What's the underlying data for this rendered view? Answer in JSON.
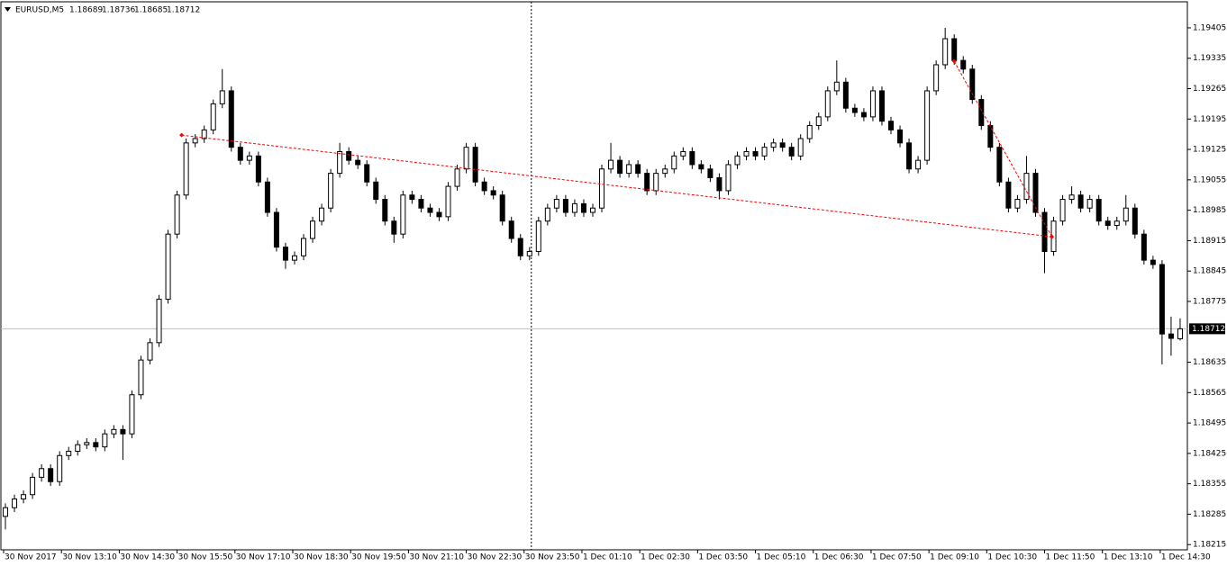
{
  "chart_data": {
    "type": "candlestick",
    "header": {
      "symbol": "EURUSD,M5",
      "ohlc": [
        1.18689,
        1.18736,
        1.18685,
        1.18712
      ]
    },
    "open": [
      1.1828,
      1.183,
      1.1832,
      1.1833,
      1.1837,
      1.1839,
      1.1836,
      1.1842,
      1.1843,
      1.18445,
      1.1845,
      1.1844,
      1.1847,
      1.1848,
      1.1847,
      1.1856,
      1.1864,
      1.1868,
      1.1878,
      1.1893,
      1.1902,
      1.1914,
      1.1915,
      1.1917,
      1.1923,
      1.1926,
      1.1913,
      1.191,
      1.1911,
      1.1905,
      1.1898,
      1.189,
      1.1887,
      1.1888,
      1.1892,
      1.1896,
      1.1899,
      1.1907,
      1.1912,
      1.191,
      1.1909,
      1.1905,
      1.1901,
      1.1896,
      1.1893,
      1.1902,
      1.1901,
      1.1899,
      1.1898,
      1.1897,
      1.1904,
      1.1908,
      1.1913,
      1.1905,
      1.1903,
      1.1902,
      1.1896,
      1.1892,
      1.1888,
      1.1889,
      1.1896,
      1.1899,
      1.1901,
      1.1898,
      1.19,
      1.1898,
      1.1899,
      1.1908,
      1.191,
      1.1907,
      1.1909,
      1.1907,
      1.1903,
      1.1907,
      1.1908,
      1.1911,
      1.1912,
      1.1909,
      1.1908,
      1.1906,
      1.1903,
      1.1909,
      1.1911,
      1.1912,
      1.1911,
      1.1913,
      1.1914,
      1.1913,
      1.1911,
      1.1915,
      1.1918,
      1.192,
      1.1926,
      1.1928,
      1.1922,
      1.1921,
      1.192,
      1.1926,
      1.1919,
      1.1917,
      1.1914,
      1.1908,
      1.191,
      1.1926,
      1.1932,
      1.1938,
      1.1933,
      1.1931,
      1.1924,
      1.1918,
      1.1913,
      1.1905,
      1.1899,
      1.1901,
      1.1907,
      1.1898,
      1.1889,
      1.1896,
      1.1901,
      1.1902,
      1.1899,
      1.1901,
      1.1896,
      1.1895,
      1.1896,
      1.1899,
      1.1893,
      1.1887,
      1.1886,
      1.187,
      1.18689
    ],
    "high": [
      1.1831,
      1.1833,
      1.1834,
      1.1838,
      1.184,
      1.184,
      1.1843,
      1.1844,
      1.18455,
      1.1846,
      1.1846,
      1.1848,
      1.1849,
      1.1849,
      1.1857,
      1.1865,
      1.1869,
      1.1879,
      1.1894,
      1.1903,
      1.1915,
      1.1916,
      1.1918,
      1.1924,
      1.1931,
      1.1927,
      1.1914,
      1.1912,
      1.1912,
      1.1906,
      1.1899,
      1.1891,
      1.1889,
      1.1893,
      1.1897,
      1.19,
      1.1908,
      1.1914,
      1.1913,
      1.1911,
      1.191,
      1.1906,
      1.1902,
      1.1897,
      1.1903,
      1.1903,
      1.1902,
      1.19,
      1.1899,
      1.1905,
      1.1909,
      1.1914,
      1.1914,
      1.1906,
      1.1904,
      1.1903,
      1.1897,
      1.1893,
      1.189,
      1.1897,
      1.19,
      1.1902,
      1.1902,
      1.1901,
      1.1901,
      1.19,
      1.1909,
      1.1914,
      1.1911,
      1.191,
      1.191,
      1.1908,
      1.1908,
      1.1909,
      1.1912,
      1.1913,
      1.1913,
      1.191,
      1.1909,
      1.1907,
      1.191,
      1.1912,
      1.1913,
      1.1913,
      1.1914,
      1.1915,
      1.1915,
      1.1914,
      1.1916,
      1.1919,
      1.1921,
      1.1927,
      1.1933,
      1.1929,
      1.1923,
      1.1922,
      1.1927,
      1.1927,
      1.192,
      1.1918,
      1.1915,
      1.1911,
      1.1927,
      1.1933,
      1.19405,
      1.1939,
      1.1934,
      1.1932,
      1.1925,
      1.1919,
      1.1914,
      1.1906,
      1.1902,
      1.1911,
      1.1908,
      1.1899,
      1.1897,
      1.1902,
      1.1904,
      1.1903,
      1.1902,
      1.1902,
      1.1897,
      1.1897,
      1.1902,
      1.19,
      1.1894,
      1.1888,
      1.1887,
      1.1874,
      1.18736
    ],
    "low": [
      1.1825,
      1.1829,
      1.1831,
      1.1832,
      1.1836,
      1.1835,
      1.1835,
      1.1841,
      1.1842,
      1.18435,
      1.1843,
      1.1843,
      1.1846,
      1.1841,
      1.1846,
      1.1855,
      1.1863,
      1.1867,
      1.1877,
      1.1892,
      1.1901,
      1.1913,
      1.1914,
      1.1916,
      1.1922,
      1.1912,
      1.1909,
      1.1909,
      1.1904,
      1.1897,
      1.1889,
      1.1885,
      1.1886,
      1.1887,
      1.1891,
      1.1895,
      1.1898,
      1.1906,
      1.1909,
      1.1908,
      1.1904,
      1.19,
      1.1895,
      1.1891,
      1.1892,
      1.19,
      1.1898,
      1.1897,
      1.1896,
      1.1896,
      1.1903,
      1.1907,
      1.1904,
      1.1902,
      1.1901,
      1.1895,
      1.1891,
      1.1887,
      1.1887,
      1.1888,
      1.1895,
      1.1898,
      1.1897,
      1.1897,
      1.1897,
      1.1897,
      1.1898,
      1.1907,
      1.1906,
      1.1906,
      1.1906,
      1.1902,
      1.1902,
      1.1906,
      1.1907,
      1.191,
      1.1908,
      1.1907,
      1.1905,
      1.1901,
      1.1902,
      1.1908,
      1.191,
      1.191,
      1.191,
      1.1912,
      1.1912,
      1.191,
      1.191,
      1.1914,
      1.1917,
      1.1919,
      1.1925,
      1.1921,
      1.192,
      1.1919,
      1.1919,
      1.1918,
      1.1916,
      1.1913,
      1.1907,
      1.1907,
      1.1909,
      1.1925,
      1.1931,
      1.1932,
      1.193,
      1.1923,
      1.1917,
      1.1912,
      1.1904,
      1.1898,
      1.1898,
      1.19,
      1.1897,
      1.1884,
      1.1888,
      1.1895,
      1.19,
      1.1898,
      1.1898,
      1.1895,
      1.1894,
      1.1894,
      1.1895,
      1.1892,
      1.1886,
      1.1885,
      1.1863,
      1.1865,
      1.18685
    ],
    "close": [
      1.183,
      1.1832,
      1.1833,
      1.1837,
      1.1839,
      1.1836,
      1.1842,
      1.1843,
      1.18445,
      1.1845,
      1.1844,
      1.1847,
      1.1848,
      1.1847,
      1.1856,
      1.1864,
      1.1868,
      1.1878,
      1.1893,
      1.1902,
      1.1914,
      1.1915,
      1.1917,
      1.1923,
      1.1926,
      1.1913,
      1.191,
      1.1911,
      1.1905,
      1.1898,
      1.189,
      1.1887,
      1.1888,
      1.1892,
      1.1896,
      1.1899,
      1.1907,
      1.1912,
      1.191,
      1.1909,
      1.1905,
      1.1901,
      1.1896,
      1.1893,
      1.1902,
      1.1901,
      1.1899,
      1.1898,
      1.1897,
      1.1904,
      1.1908,
      1.1913,
      1.1905,
      1.1903,
      1.1902,
      1.1896,
      1.1892,
      1.1888,
      1.1889,
      1.1896,
      1.1899,
      1.1901,
      1.1898,
      1.19,
      1.1898,
      1.1899,
      1.1908,
      1.191,
      1.1907,
      1.1909,
      1.1907,
      1.1903,
      1.1907,
      1.1908,
      1.1911,
      1.1912,
      1.1909,
      1.1908,
      1.1906,
      1.1903,
      1.1909,
      1.1911,
      1.1912,
      1.1911,
      1.1913,
      1.1914,
      1.1913,
      1.1911,
      1.1915,
      1.1918,
      1.192,
      1.1926,
      1.1928,
      1.1922,
      1.1921,
      1.192,
      1.1926,
      1.1919,
      1.1917,
      1.1914,
      1.1908,
      1.191,
      1.1926,
      1.1932,
      1.1938,
      1.1933,
      1.1931,
      1.1924,
      1.1918,
      1.1913,
      1.1905,
      1.1899,
      1.1901,
      1.1907,
      1.1898,
      1.1889,
      1.1896,
      1.1901,
      1.1902,
      1.1899,
      1.1901,
      1.1896,
      1.1895,
      1.1896,
      1.1899,
      1.1893,
      1.1887,
      1.1886,
      1.187,
      1.1869,
      1.18712
    ],
    "xlim": [
      -0.5,
      130.8
    ],
    "ylim": [
      1.18203,
      1.19465
    ],
    "yticks": [
      1.19405,
      1.19335,
      1.19265,
      1.19195,
      1.19125,
      1.19055,
      1.18985,
      1.18915,
      1.18845,
      1.18775,
      1.18635,
      1.18565,
      1.18495,
      1.18425,
      1.18355,
      1.18285,
      1.18215
    ],
    "xticks": [
      {
        "value": -0.2,
        "label": "30 Nov 2017"
      },
      {
        "value": 6.2,
        "label": "30 Nov 13:10"
      },
      {
        "value": 12.6,
        "label": "30 Nov 14:30"
      },
      {
        "value": 19.0,
        "label": "30 Nov 15:50"
      },
      {
        "value": 25.4,
        "label": "30 Nov 17:10"
      },
      {
        "value": 31.8,
        "label": "30 Nov 18:30"
      },
      {
        "value": 38.2,
        "label": "30 Nov 19:50"
      },
      {
        "value": 44.6,
        "label": "30 Nov 21:10"
      },
      {
        "value": 51.0,
        "label": "30 Nov 22:30"
      },
      {
        "value": 57.4,
        "label": "30 Nov 23:50"
      },
      {
        "value": 63.8,
        "label": "1 Dec 01:10"
      },
      {
        "value": 70.2,
        "label": "1 Dec 02:30"
      },
      {
        "value": 76.6,
        "label": "1 Dec 03:50"
      },
      {
        "value": 83.0,
        "label": "1 Dec 05:10"
      },
      {
        "value": 89.4,
        "label": "1 Dec 06:30"
      },
      {
        "value": 95.8,
        "label": "1 Dec 07:50"
      },
      {
        "value": 102.2,
        "label": "1 Dec 09:10"
      },
      {
        "value": 108.6,
        "label": "1 Dec 10:30"
      },
      {
        "value": 115.0,
        "label": "1 Dec 11:50"
      },
      {
        "value": 121.4,
        "label": "1 Dec 13:10"
      },
      {
        "value": 127.8,
        "label": "1 Dec 14:30"
      }
    ],
    "bid": 1.18712,
    "vline_x": 58.2,
    "trendline_color": "#ff0000",
    "trendlines": [
      {
        "x": [
          19.5,
          115.8
        ],
        "y": [
          1.19158,
          1.18924
        ]
      },
      {
        "x": [
          105.0,
          115.8
        ],
        "y": [
          1.19328,
          1.18924
        ]
      }
    ],
    "bull_color": "#ffffff",
    "bear_color": "#000000"
  }
}
